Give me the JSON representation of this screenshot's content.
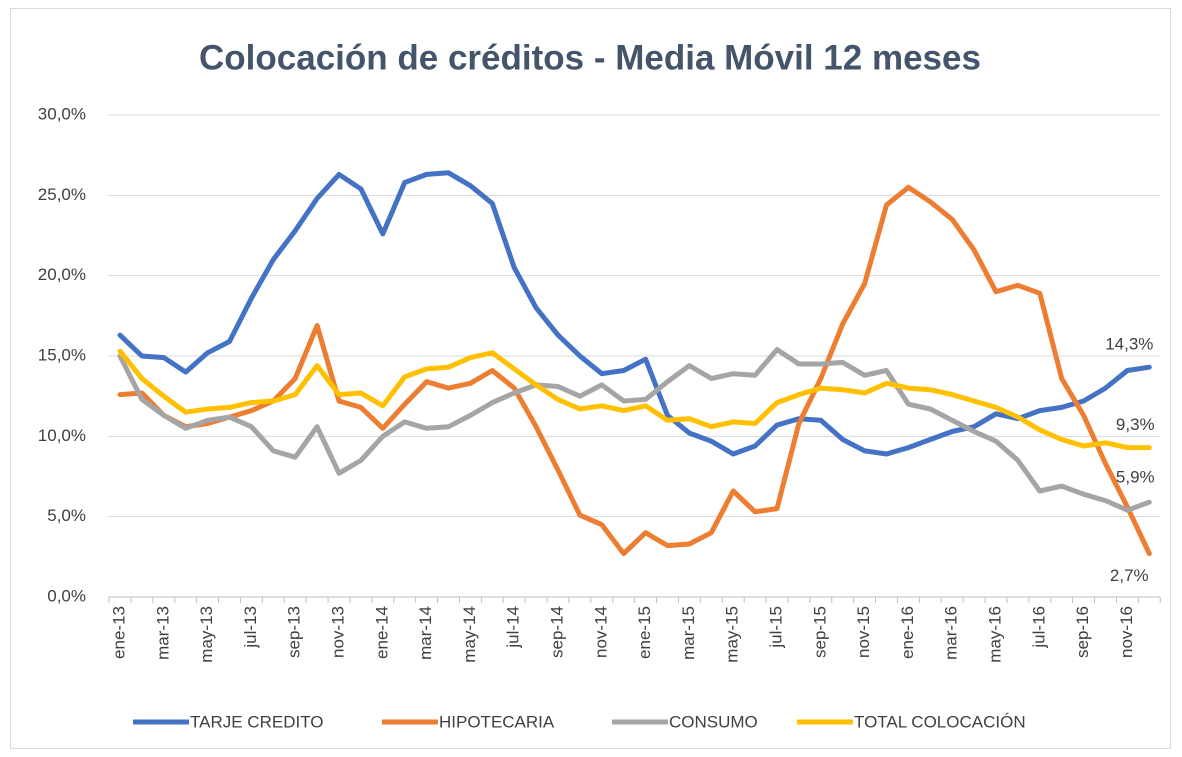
{
  "chart_data": {
    "type": "line",
    "title": "Colocación de créditos - Media Móvil 12 meses",
    "categories": [
      "ene-13",
      null,
      "mar-13",
      null,
      "may-13",
      null,
      "jul-13",
      null,
      "sep-13",
      null,
      "nov-13",
      null,
      "ene-14",
      null,
      "mar-14",
      null,
      "may-14",
      null,
      "jul-14",
      null,
      "sep-14",
      null,
      "nov-14",
      null,
      "ene-15",
      null,
      "mar-15",
      null,
      "may-15",
      null,
      "jul-15",
      null,
      "sep-15",
      null,
      "nov-15",
      null,
      "ene-16",
      null,
      "mar-16",
      null,
      "may-16",
      null,
      "jul-16",
      null,
      "sep-16",
      null,
      "nov-16",
      null
    ],
    "series": [
      {
        "name": "TARJE CREDITO",
        "color": "#4472c4",
        "values": [
          16.3,
          15.0,
          14.9,
          14.0,
          15.2,
          15.9,
          18.6,
          21.0,
          22.8,
          24.8,
          26.3,
          25.4,
          22.6,
          25.8,
          26.3,
          26.4,
          25.6,
          24.5,
          20.5,
          18.0,
          16.3,
          15.0,
          13.9,
          14.1,
          14.8,
          11.3,
          10.2,
          9.7,
          8.9,
          9.4,
          10.7,
          11.1,
          11.0,
          9.8,
          9.1,
          8.9,
          9.3,
          9.8,
          10.3,
          10.6,
          11.4,
          11.1,
          11.6,
          11.8,
          12.2,
          13.0,
          14.1,
          14.3
        ],
        "value_labels": [
          null,
          null,
          null,
          null,
          null,
          null,
          null,
          null,
          null,
          null,
          null,
          null,
          null,
          null,
          null,
          null,
          null,
          null,
          null,
          null,
          null,
          null,
          null,
          null,
          null,
          null,
          null,
          null,
          null,
          null,
          null,
          null,
          null,
          null,
          null,
          null,
          null,
          null,
          null,
          null,
          null,
          null,
          null,
          null,
          null,
          null,
          null,
          "14,3%"
        ]
      },
      {
        "name": "HIPOTECARIA",
        "color": "#ed7d31",
        "values": [
          12.6,
          12.7,
          11.3,
          10.6,
          10.8,
          11.2,
          11.6,
          12.2,
          13.6,
          16.9,
          12.2,
          11.8,
          10.5,
          12.0,
          13.4,
          13.0,
          13.3,
          14.1,
          13.0,
          10.6,
          7.9,
          5.1,
          4.5,
          2.7,
          4.0,
          3.2,
          3.3,
          4.0,
          6.6,
          5.3,
          5.5,
          10.8,
          13.6,
          17.0,
          19.5,
          24.4,
          25.5,
          24.6,
          23.5,
          21.6,
          19.0,
          19.4,
          18.9,
          13.6,
          11.3,
          8.3,
          5.6,
          2.7
        ],
        "value_labels": [
          null,
          null,
          null,
          null,
          null,
          null,
          null,
          null,
          null,
          null,
          null,
          null,
          null,
          null,
          null,
          null,
          null,
          null,
          null,
          null,
          null,
          null,
          null,
          null,
          null,
          null,
          null,
          null,
          null,
          null,
          null,
          null,
          null,
          null,
          null,
          null,
          null,
          null,
          null,
          null,
          null,
          null,
          null,
          null,
          null,
          null,
          null,
          "2,7%"
        ]
      },
      {
        "name": "CONSUMO",
        "color": "#a5a5a5",
        "values": [
          15.0,
          12.3,
          11.3,
          10.5,
          11.0,
          11.2,
          10.6,
          9.1,
          8.7,
          10.6,
          7.7,
          8.5,
          10.0,
          10.9,
          10.5,
          10.6,
          11.3,
          12.1,
          12.7,
          13.2,
          13.1,
          12.5,
          13.2,
          12.2,
          12.3,
          13.4,
          14.4,
          13.6,
          13.9,
          13.8,
          15.4,
          14.5,
          14.5,
          14.6,
          13.8,
          14.1,
          12.0,
          11.7,
          11.0,
          10.3,
          9.7,
          8.5,
          6.6,
          6.9,
          6.4,
          6.0,
          5.4,
          5.9
        ],
        "value_labels": [
          null,
          null,
          null,
          null,
          null,
          null,
          null,
          null,
          null,
          null,
          null,
          null,
          null,
          null,
          null,
          null,
          null,
          null,
          null,
          null,
          null,
          null,
          null,
          null,
          null,
          null,
          null,
          null,
          null,
          null,
          null,
          null,
          null,
          null,
          null,
          null,
          null,
          null,
          null,
          null,
          null,
          null,
          null,
          null,
          null,
          null,
          null,
          "5,9%"
        ]
      },
      {
        "name": "TOTAL COLOCACIÓN",
        "color": "#ffc000",
        "values": [
          15.3,
          13.6,
          12.5,
          11.5,
          11.7,
          11.8,
          12.1,
          12.2,
          12.6,
          14.4,
          12.6,
          12.7,
          11.9,
          13.7,
          14.2,
          14.3,
          14.9,
          15.2,
          14.2,
          13.2,
          12.3,
          11.7,
          11.9,
          11.6,
          11.9,
          11.0,
          11.1,
          10.6,
          10.9,
          10.8,
          12.1,
          12.6,
          13.0,
          12.9,
          12.7,
          13.3,
          13.0,
          12.9,
          12.6,
          12.2,
          11.8,
          11.2,
          10.4,
          9.8,
          9.4,
          9.6,
          9.3,
          9.3
        ],
        "value_labels": [
          null,
          null,
          null,
          null,
          null,
          null,
          null,
          null,
          null,
          null,
          null,
          null,
          null,
          null,
          null,
          null,
          null,
          null,
          null,
          null,
          null,
          null,
          null,
          null,
          null,
          null,
          null,
          null,
          null,
          null,
          null,
          null,
          null,
          null,
          null,
          null,
          null,
          null,
          null,
          null,
          null,
          null,
          null,
          null,
          null,
          null,
          null,
          "9,3%"
        ]
      }
    ],
    "ylim": [
      0,
      30
    ],
    "yticks": [
      {
        "value": 0,
        "label": "0,0%"
      },
      {
        "value": 5,
        "label": "5,0%"
      },
      {
        "value": 10,
        "label": "10,0%"
      },
      {
        "value": 15,
        "label": "15,0%"
      },
      {
        "value": 20,
        "label": "20,0%"
      },
      {
        "value": 25,
        "label": "25,0%"
      },
      {
        "value": 30,
        "label": "30,0%"
      }
    ],
    "grid": true,
    "legend": "bottom"
  }
}
